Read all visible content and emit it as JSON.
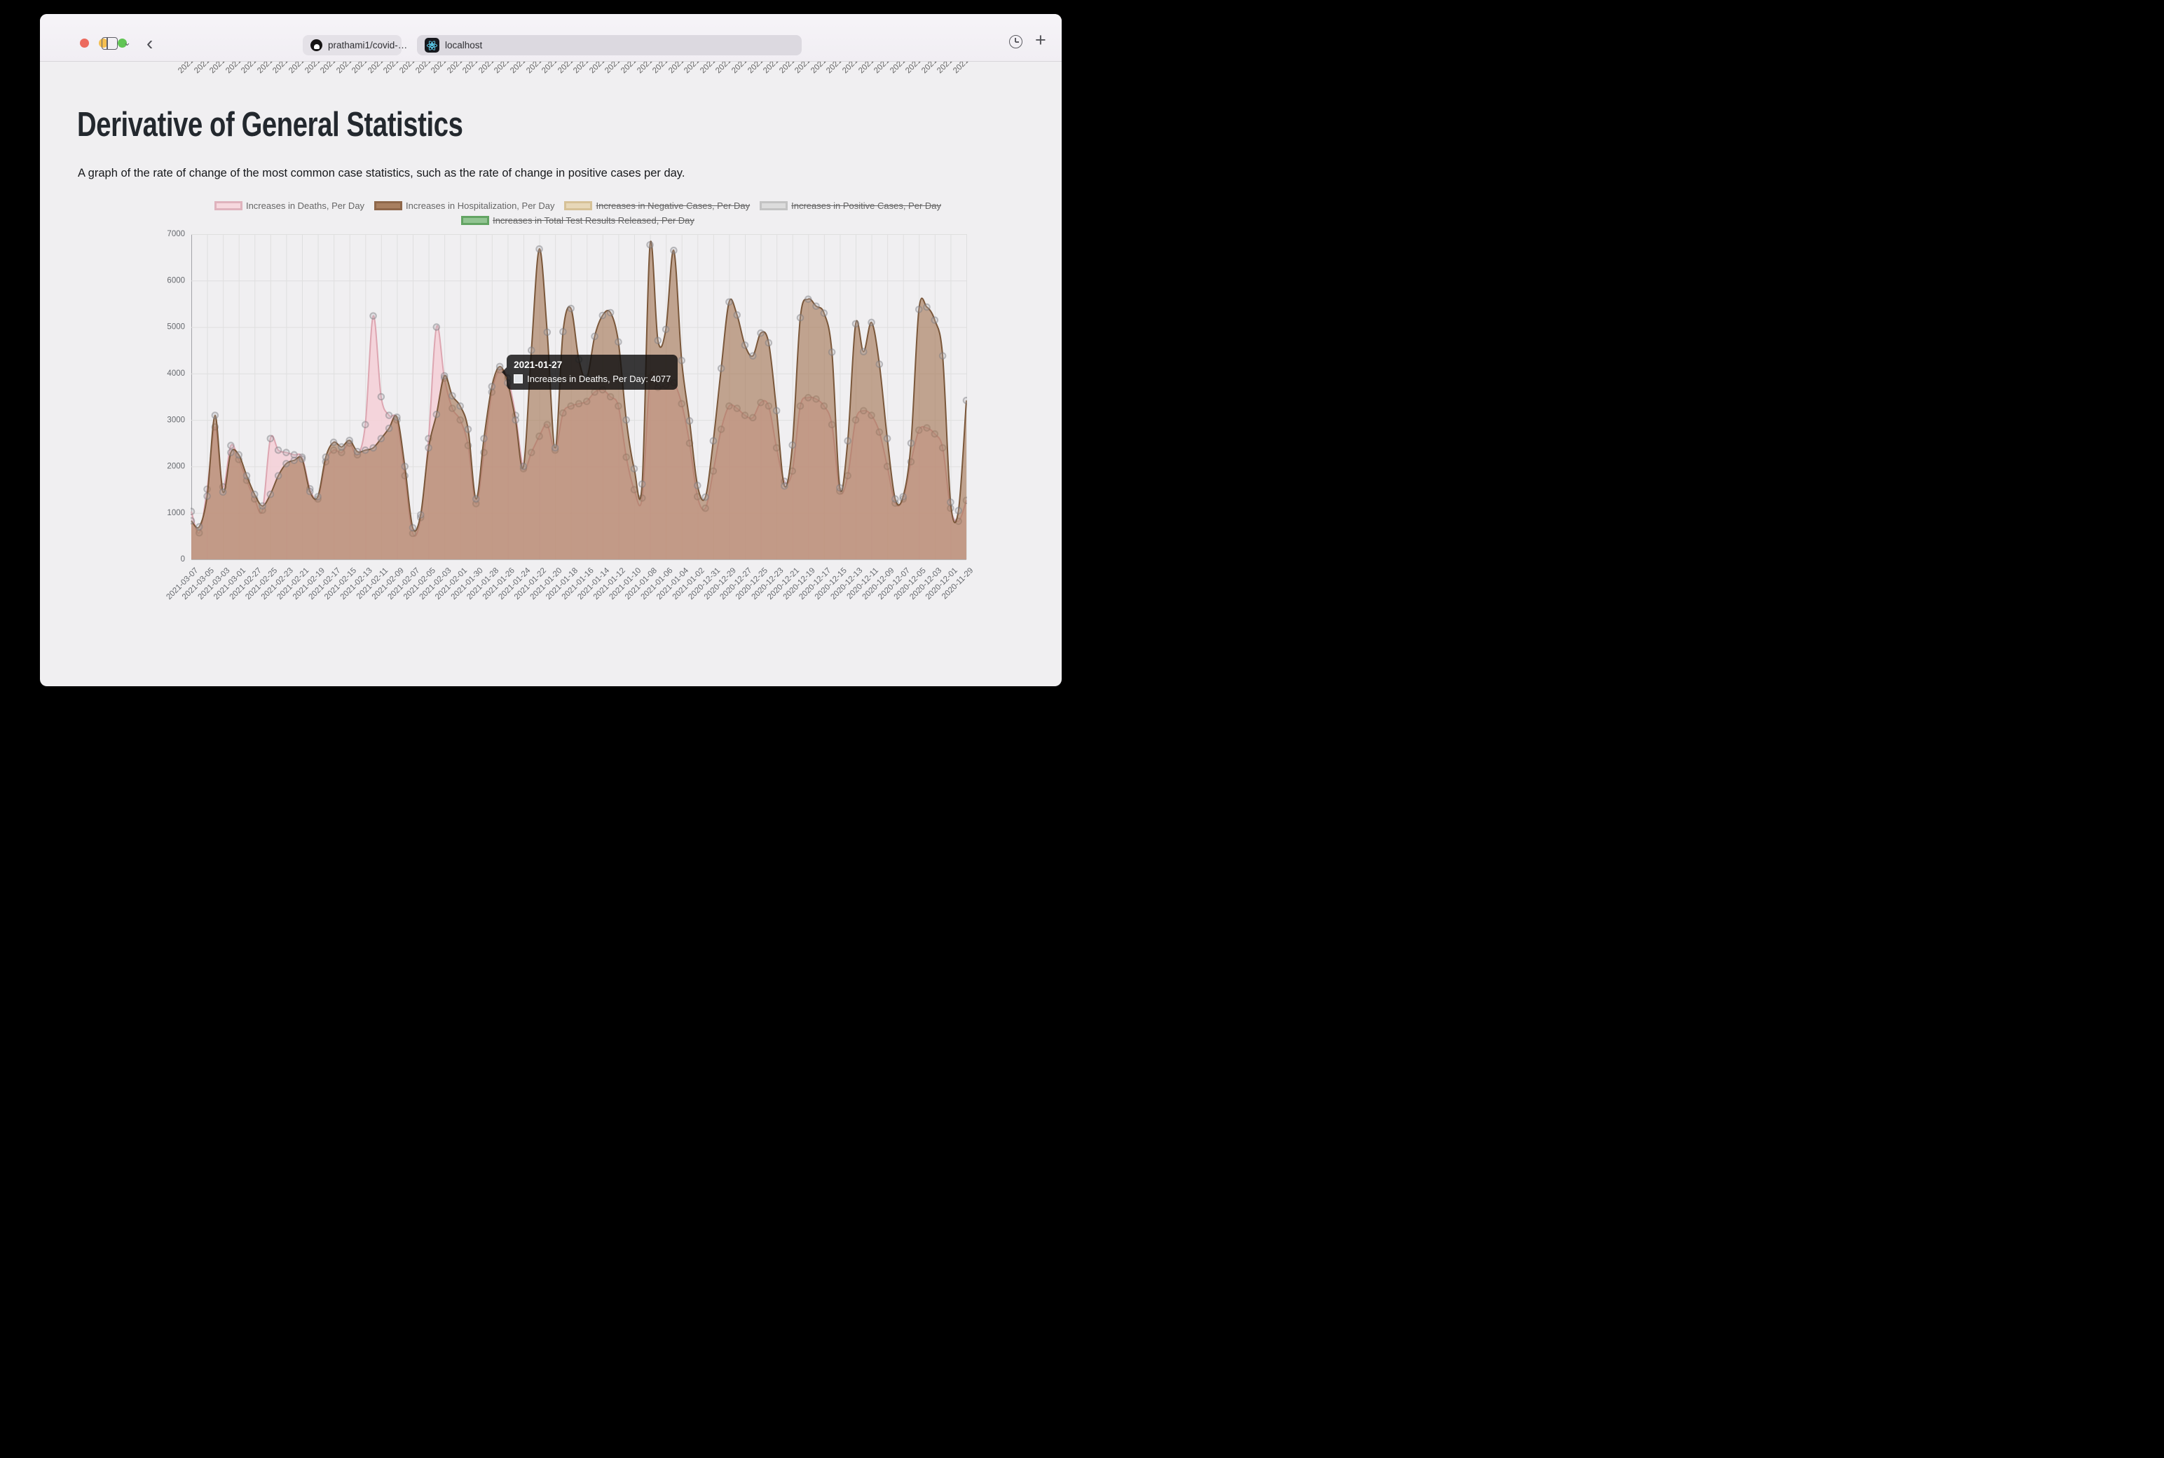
{
  "window": {
    "traffic_colors": [
      "#ec6a5e",
      "#f5bf4f",
      "#61c554"
    ],
    "tabs": {
      "repo_tab": "prathami1/covid-…",
      "active_tab": "localhost"
    }
  },
  "page": {
    "title": "Derivative of General Statistics",
    "subtitle": "A graph of the rate of change of the most common case statistics, such as the rate of change in positive cases per day.",
    "top_fragment_text": "2021-"
  },
  "legend": {
    "row1": [
      {
        "label": "Increases in Deaths, Per Day",
        "fill": "#f6d8de",
        "border": "#dfb3bd",
        "struck": false
      },
      {
        "label": "Increases in Hospitalization, Per Day",
        "fill": "#a87f60",
        "border": "#8e674a",
        "struck": false
      },
      {
        "label": "Increases in Negative Cases, Per Day",
        "fill": "#e7d7b8",
        "border": "#d6c197",
        "struck": true
      },
      {
        "label": "Increases in Positive Cases, Per Day",
        "fill": "#dcdcdc",
        "border": "#c3c3c3",
        "struck": true
      }
    ],
    "row2": [
      {
        "label": "Increases in Total Test Results Released, Per Day",
        "fill": "#92c492",
        "border": "#63a463",
        "struck": true
      }
    ]
  },
  "tooltip": {
    "date": "2021-01-27",
    "label": "Increases in Deaths, Per Day: 4077",
    "series": "Increases in Deaths, Per Day",
    "value": 4077
  },
  "chart_data": {
    "type": "area",
    "title": "",
    "xlabel": "",
    "ylabel": "",
    "ylim": [
      0,
      7000
    ],
    "yticks": [
      0,
      1000,
      2000,
      3000,
      4000,
      5000,
      6000,
      7000
    ],
    "grid": true,
    "x_label_every": 2,
    "x": [
      "2021-03-07",
      "2021-03-06",
      "2021-03-05",
      "2021-03-04",
      "2021-03-03",
      "2021-03-02",
      "2021-03-01",
      "2021-02-28",
      "2021-02-27",
      "2021-02-26",
      "2021-02-25",
      "2021-02-24",
      "2021-02-23",
      "2021-02-22",
      "2021-02-21",
      "2021-02-20",
      "2021-02-19",
      "2021-02-18",
      "2021-02-17",
      "2021-02-16",
      "2021-02-15",
      "2021-02-14",
      "2021-02-13",
      "2021-02-12",
      "2021-02-11",
      "2021-02-10",
      "2021-02-09",
      "2021-02-08",
      "2021-02-07",
      "2021-02-06",
      "2021-02-05",
      "2021-02-04",
      "2021-02-03",
      "2021-02-02",
      "2021-02-01",
      "2021-01-31",
      "2021-01-30",
      "2021-01-29",
      "2021-01-28",
      "2021-01-27",
      "2021-01-26",
      "2021-01-25",
      "2021-01-24",
      "2021-01-23",
      "2021-01-22",
      "2021-01-21",
      "2021-01-20",
      "2021-01-19",
      "2021-01-18",
      "2021-01-17",
      "2021-01-16",
      "2021-01-15",
      "2021-01-14",
      "2021-01-13",
      "2021-01-12",
      "2021-01-11",
      "2021-01-10",
      "2021-01-09",
      "2021-01-08",
      "2021-01-07",
      "2021-01-06",
      "2021-01-05",
      "2021-01-04",
      "2021-01-03",
      "2021-01-02",
      "2021-01-01",
      "2020-12-31",
      "2020-12-30",
      "2020-12-29",
      "2020-12-28",
      "2020-12-27",
      "2020-12-26",
      "2020-12-25",
      "2020-12-24",
      "2020-12-23",
      "2020-12-22",
      "2020-12-21",
      "2020-12-20",
      "2020-12-19",
      "2020-12-18",
      "2020-12-17",
      "2020-12-16",
      "2020-12-15",
      "2020-12-14",
      "2020-12-13",
      "2020-12-12",
      "2020-12-11",
      "2020-12-10",
      "2020-12-09",
      "2020-12-08",
      "2020-12-07",
      "2020-12-06",
      "2020-12-05",
      "2020-12-04",
      "2020-12-03",
      "2020-12-02",
      "2020-12-01",
      "2020-11-30",
      "2020-11-29"
    ],
    "series": [
      {
        "name": "Increases in Deaths, Per Day",
        "line_color": "#dda6b1",
        "fill_color": "rgba(244,208,215,0.88)",
        "values": [
          1030,
          570,
          1510,
          2850,
          1560,
          2450,
          2150,
          1700,
          1300,
          1060,
          2600,
          2350,
          2300,
          2250,
          2200,
          1520,
          1300,
          2100,
          2350,
          2300,
          2500,
          2250,
          2900,
          5240,
          3500,
          3100,
          3000,
          1800,
          560,
          900,
          2600,
          5000,
          3900,
          3250,
          3000,
          2450,
          1200,
          2300,
          3600,
          4077,
          3900,
          3100,
          1950,
          2300,
          2650,
          2900,
          2350,
          3150,
          3300,
          3350,
          3400,
          3600,
          3650,
          3500,
          3300,
          2200,
          1500,
          1320,
          3900,
          3700,
          3750,
          3800,
          3350,
          2500,
          1350,
          1100,
          1900,
          2800,
          3300,
          3250,
          3100,
          3050,
          3375,
          3300,
          2400,
          1680,
          1900,
          3300,
          3480,
          3450,
          3300,
          2900,
          1470,
          1800,
          3000,
          3200,
          3100,
          2740,
          2000,
          1210,
          1300,
          2100,
          2780,
          2830,
          2700,
          2400,
          1100,
          820,
          1270
        ]
      },
      {
        "name": "Increases in Hospitalization, Per Day",
        "line_color": "#7a573a",
        "fill_color": "rgba(163,117,82,0.62)",
        "values": [
          830,
          700,
          1360,
          3100,
          1450,
          2300,
          2250,
          1800,
          1400,
          1150,
          1400,
          1800,
          2060,
          2130,
          2160,
          1460,
          1350,
          2200,
          2520,
          2420,
          2560,
          2320,
          2350,
          2400,
          2600,
          2820,
          3060,
          2000,
          680,
          960,
          2400,
          3120,
          3950,
          3520,
          3300,
          2800,
          1300,
          2600,
          3720,
          4150,
          3800,
          3000,
          2000,
          4500,
          6680,
          4890,
          2400,
          4900,
          5400,
          4300,
          3900,
          4800,
          5250,
          5310,
          4680,
          3000,
          1950,
          1620,
          6770,
          4710,
          4950,
          6650,
          4280,
          2980,
          1590,
          1340,
          2550,
          4110,
          5540,
          5260,
          4610,
          4380,
          4870,
          4660,
          3200,
          1580,
          2460,
          5200,
          5600,
          5450,
          5300,
          4460,
          1540,
          2550,
          5070,
          4470,
          5100,
          4200,
          2600,
          1300,
          1350,
          2500,
          5380,
          5430,
          5150,
          4380,
          1230,
          1050,
          3420
        ]
      }
    ],
    "disabled_series": [
      "Increases in Negative Cases, Per Day",
      "Increases in Positive Cases, Per Day",
      "Increases in Total Test Results Released, Per Day"
    ],
    "legend_position": "top",
    "colors": {
      "grid": "#dfdfdf",
      "axis": "#a3a3a8",
      "zero_line": "#b7b7b7",
      "tick_text": "#66696e",
      "point_stroke": "rgba(120,120,125,0.45)",
      "point_fill": "rgba(190,190,195,0.30)"
    }
  }
}
